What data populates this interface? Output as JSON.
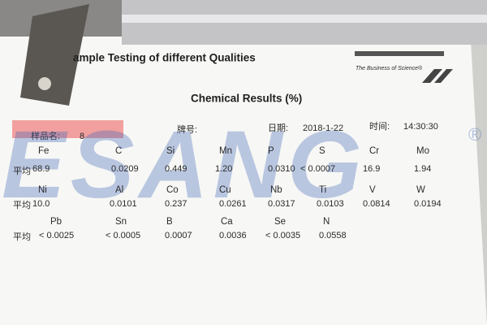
{
  "header": {
    "title": "ample Testing of different Qualities",
    "tagline": "The Business of Science®",
    "heading": "Chemical Results (%)"
  },
  "meta": {
    "sample_label": "样品名:",
    "sample": "8",
    "grade_label": "牌号:",
    "date_label": "日期:",
    "date": "2018-1-22",
    "time_label": "时间:",
    "time": "14:30:30"
  },
  "avg_label": "平均",
  "rows": [
    [
      {
        "symbol": "Fe",
        "value": "68.9"
      },
      {
        "symbol": "C",
        "value": "0.0209"
      },
      {
        "symbol": "Si",
        "value": "0.449"
      },
      {
        "symbol": "Mn",
        "value": "1.20"
      },
      {
        "symbol": "P",
        "value": "0.0310"
      },
      {
        "symbol": "S",
        "value": "< 0.0007"
      },
      {
        "symbol": "Cr",
        "value": "16.9"
      },
      {
        "symbol": "Mo",
        "value": "1.94"
      }
    ],
    [
      {
        "symbol": "Ni",
        "value": "10.0"
      },
      {
        "symbol": "Al",
        "value": "0.0101"
      },
      {
        "symbol": "Co",
        "value": "0.237"
      },
      {
        "symbol": "Cu",
        "value": "0.0261"
      },
      {
        "symbol": "Nb",
        "value": "0.0317"
      },
      {
        "symbol": "Ti",
        "value": "0.0103"
      },
      {
        "symbol": "V",
        "value": "0.0814"
      },
      {
        "symbol": "W",
        "value": "0.0194"
      }
    ],
    [
      {
        "symbol": "Pb",
        "value": "< 0.0025"
      },
      {
        "symbol": "Sn",
        "value": "< 0.0005"
      },
      {
        "symbol": "B",
        "value": "0.0007"
      },
      {
        "symbol": "Ca",
        "value": "0.0036"
      },
      {
        "symbol": "Se",
        "value": "< 0.0035"
      },
      {
        "symbol": "N",
        "value": "0.0558"
      }
    ]
  ],
  "watermark": {
    "text": "ESANG",
    "mark": "®"
  }
}
